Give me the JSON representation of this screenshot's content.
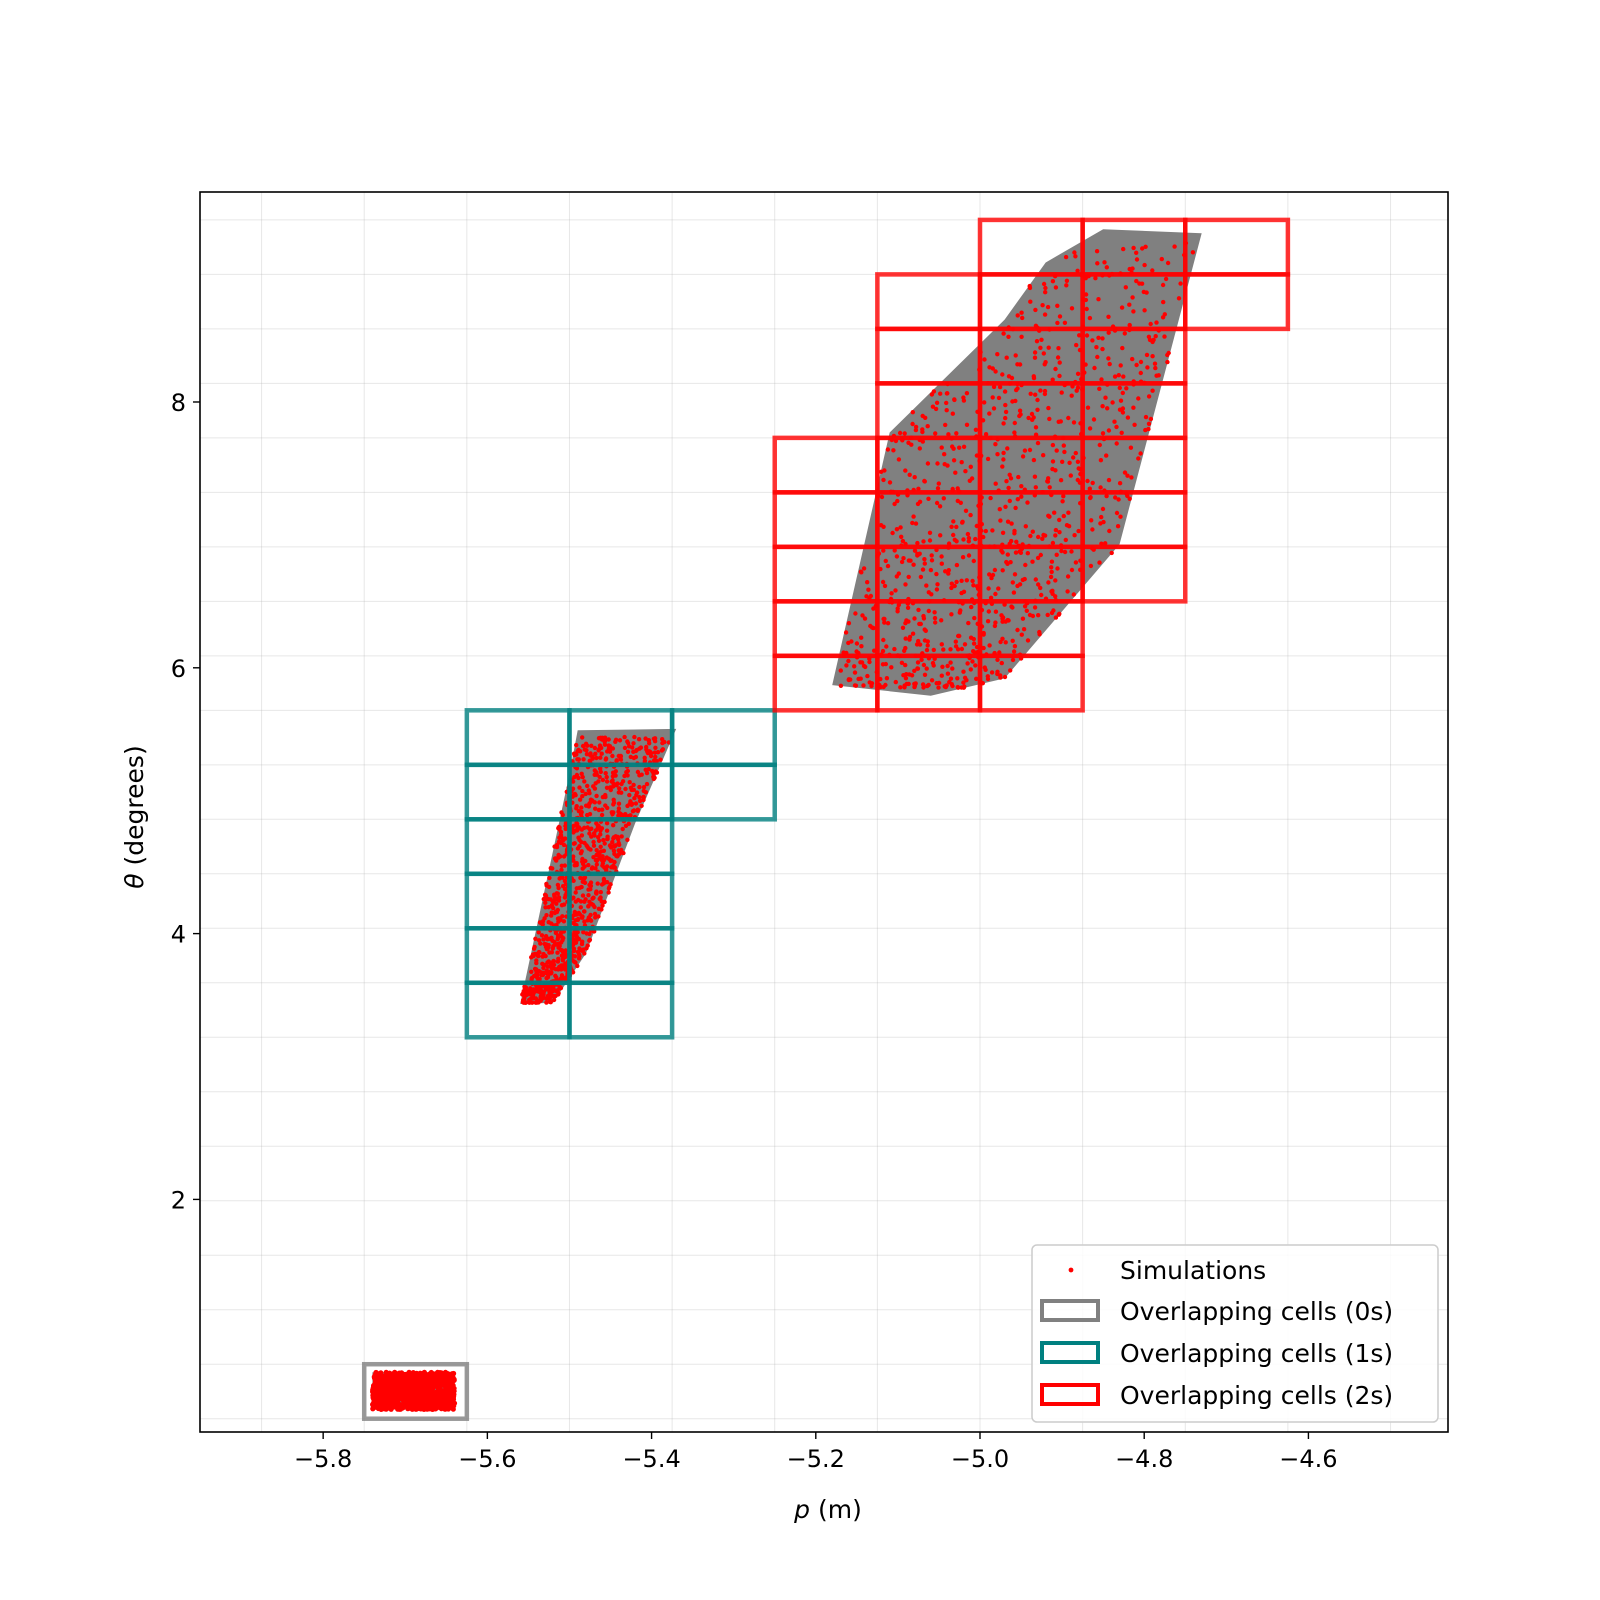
{
  "chart_data": {
    "type": "scatter",
    "xlabel_var": "p",
    "xlabel_unit": " (m)",
    "ylabel_var": "θ",
    "ylabel_unit": " (degrees)",
    "xlim": [
      -5.95,
      -4.43
    ],
    "ylim": [
      0.25,
      9.58
    ],
    "xticks": [
      -5.8,
      -5.6,
      -5.4,
      -5.2,
      -5.0,
      -4.8,
      -4.6
    ],
    "xtick_labels": [
      "−5.8",
      "−5.6",
      "−5.4",
      "−5.2",
      "−5.0",
      "−4.8",
      "−4.6"
    ],
    "yticks": [
      2,
      4,
      6,
      8
    ],
    "ytick_labels": [
      "2",
      "4",
      "6",
      "8"
    ],
    "grid": true,
    "grid_x_lines": [
      -5.875,
      -5.75,
      -5.625,
      -5.5,
      -5.375,
      -5.25,
      -5.125,
      -5.0,
      -4.875,
      -4.75,
      -4.625,
      -4.5
    ],
    "grid_y_lines": [
      0.35,
      0.76,
      1.17,
      1.58,
      1.99,
      2.4,
      2.81,
      3.22,
      3.63,
      4.04,
      4.45,
      4.86,
      5.27,
      5.68,
      6.09,
      6.5,
      6.91,
      7.32,
      7.73,
      8.14,
      8.55,
      8.96,
      9.37
    ],
    "legend_placement": "lower-right",
    "legend": [
      {
        "label": "Simulations",
        "kind": "point",
        "color": "#ff0000"
      },
      {
        "label": "Overlapping cells (0s)",
        "kind": "box",
        "color": "#808080"
      },
      {
        "label": "Overlapping cells (1s)",
        "kind": "box",
        "color": "#008080"
      },
      {
        "label": "Overlapping cells (2s)",
        "kind": "box",
        "color": "#ff0000"
      }
    ],
    "reachable_sets": [
      {
        "name": "0s",
        "polygon": [
          [
            -5.74,
            0.42
          ],
          [
            -5.64,
            0.42
          ],
          [
            -5.64,
            0.7
          ],
          [
            -5.74,
            0.7
          ]
        ]
      },
      {
        "name": "1s",
        "polygon": [
          [
            -5.56,
            3.47
          ],
          [
            -5.5,
            5.2
          ],
          [
            -5.49,
            5.53
          ],
          [
            -5.37,
            5.54
          ],
          [
            -5.42,
            4.83
          ],
          [
            -5.48,
            3.85
          ],
          [
            -5.52,
            3.48
          ]
        ]
      },
      {
        "name": "2s",
        "polygon": [
          [
            -5.18,
            5.87
          ],
          [
            -5.11,
            7.77
          ],
          [
            -4.97,
            8.62
          ],
          [
            -4.92,
            9.05
          ],
          [
            -4.85,
            9.3
          ],
          [
            -4.73,
            9.27
          ],
          [
            -4.83,
            6.93
          ],
          [
            -4.97,
            5.92
          ],
          [
            -5.06,
            5.79
          ]
        ]
      }
    ],
    "cell_groups": [
      {
        "name": "Overlapping cells (0s)",
        "color": "#808080",
        "cells": [
          [
            -5.75,
            -5.625,
            0.35,
            0.76
          ]
        ]
      },
      {
        "name": "Overlapping cells (1s)",
        "color": "#008080",
        "cells": [
          [
            -5.625,
            -5.5,
            3.22,
            3.63
          ],
          [
            -5.5,
            -5.375,
            3.22,
            3.63
          ],
          [
            -5.625,
            -5.5,
            3.63,
            4.04
          ],
          [
            -5.5,
            -5.375,
            3.63,
            4.04
          ],
          [
            -5.625,
            -5.5,
            4.04,
            4.45
          ],
          [
            -5.5,
            -5.375,
            4.04,
            4.45
          ],
          [
            -5.625,
            -5.5,
            4.45,
            4.86
          ],
          [
            -5.5,
            -5.375,
            4.45,
            4.86
          ],
          [
            -5.625,
            -5.5,
            4.86,
            5.27
          ],
          [
            -5.5,
            -5.375,
            4.86,
            5.27
          ],
          [
            -5.375,
            -5.25,
            4.86,
            5.27
          ],
          [
            -5.625,
            -5.5,
            5.27,
            5.68
          ],
          [
            -5.5,
            -5.375,
            5.27,
            5.68
          ],
          [
            -5.375,
            -5.25,
            5.27,
            5.68
          ]
        ]
      },
      {
        "name": "Overlapping cells (2s)",
        "color": "#ff0000",
        "cells": [
          [
            -5.25,
            -5.125,
            5.68,
            6.09
          ],
          [
            -5.125,
            -5.0,
            5.68,
            6.09
          ],
          [
            -5.0,
            -4.875,
            5.68,
            6.09
          ],
          [
            -5.25,
            -5.125,
            6.09,
            6.5
          ],
          [
            -5.125,
            -5.0,
            6.09,
            6.5
          ],
          [
            -5.0,
            -4.875,
            6.09,
            6.5
          ],
          [
            -5.25,
            -5.125,
            6.5,
            6.91
          ],
          [
            -5.125,
            -5.0,
            6.5,
            6.91
          ],
          [
            -5.0,
            -4.875,
            6.5,
            6.91
          ],
          [
            -4.875,
            -4.75,
            6.5,
            6.91
          ],
          [
            -5.25,
            -5.125,
            6.91,
            7.32
          ],
          [
            -5.125,
            -5.0,
            6.91,
            7.32
          ],
          [
            -5.0,
            -4.875,
            6.91,
            7.32
          ],
          [
            -4.875,
            -4.75,
            6.91,
            7.32
          ],
          [
            -5.25,
            -5.125,
            7.32,
            7.73
          ],
          [
            -5.125,
            -5.0,
            7.32,
            7.73
          ],
          [
            -5.0,
            -4.875,
            7.32,
            7.73
          ],
          [
            -4.875,
            -4.75,
            7.32,
            7.73
          ],
          [
            -5.125,
            -5.0,
            7.73,
            8.14
          ],
          [
            -5.0,
            -4.875,
            7.73,
            8.14
          ],
          [
            -4.875,
            -4.75,
            7.73,
            8.14
          ],
          [
            -5.125,
            -5.0,
            8.14,
            8.55
          ],
          [
            -5.0,
            -4.875,
            8.14,
            8.55
          ],
          [
            -4.875,
            -4.75,
            8.14,
            8.55
          ],
          [
            -5.125,
            -5.0,
            8.55,
            8.96
          ],
          [
            -5.0,
            -4.875,
            8.55,
            8.96
          ],
          [
            -4.875,
            -4.75,
            8.55,
            8.96
          ],
          [
            -4.75,
            -4.625,
            8.55,
            8.96
          ],
          [
            -5.0,
            -4.875,
            8.96,
            9.37
          ],
          [
            -4.875,
            -4.75,
            8.96,
            9.37
          ],
          [
            -4.75,
            -4.625,
            8.96,
            9.37
          ]
        ]
      }
    ],
    "simulations": {
      "color": "#ff0000",
      "count_per_time": 1000,
      "clusters": [
        {
          "time": "0s",
          "p_range": [
            -5.74,
            -5.64
          ],
          "theta_range": [
            0.42,
            0.7
          ]
        },
        {
          "time": "1s",
          "p_range": [
            -5.56,
            -5.37
          ],
          "theta_range": [
            3.48,
            5.48
          ]
        },
        {
          "time": "2s",
          "p_range": [
            -5.17,
            -4.74
          ],
          "theta_range": [
            5.85,
            9.2
          ]
        }
      ]
    },
    "legend_colors": {
      "sim": "#ff0000",
      "cells_0s": "#808080",
      "cells_1s": "#008080",
      "cells_2s": "#ff0000"
    }
  }
}
